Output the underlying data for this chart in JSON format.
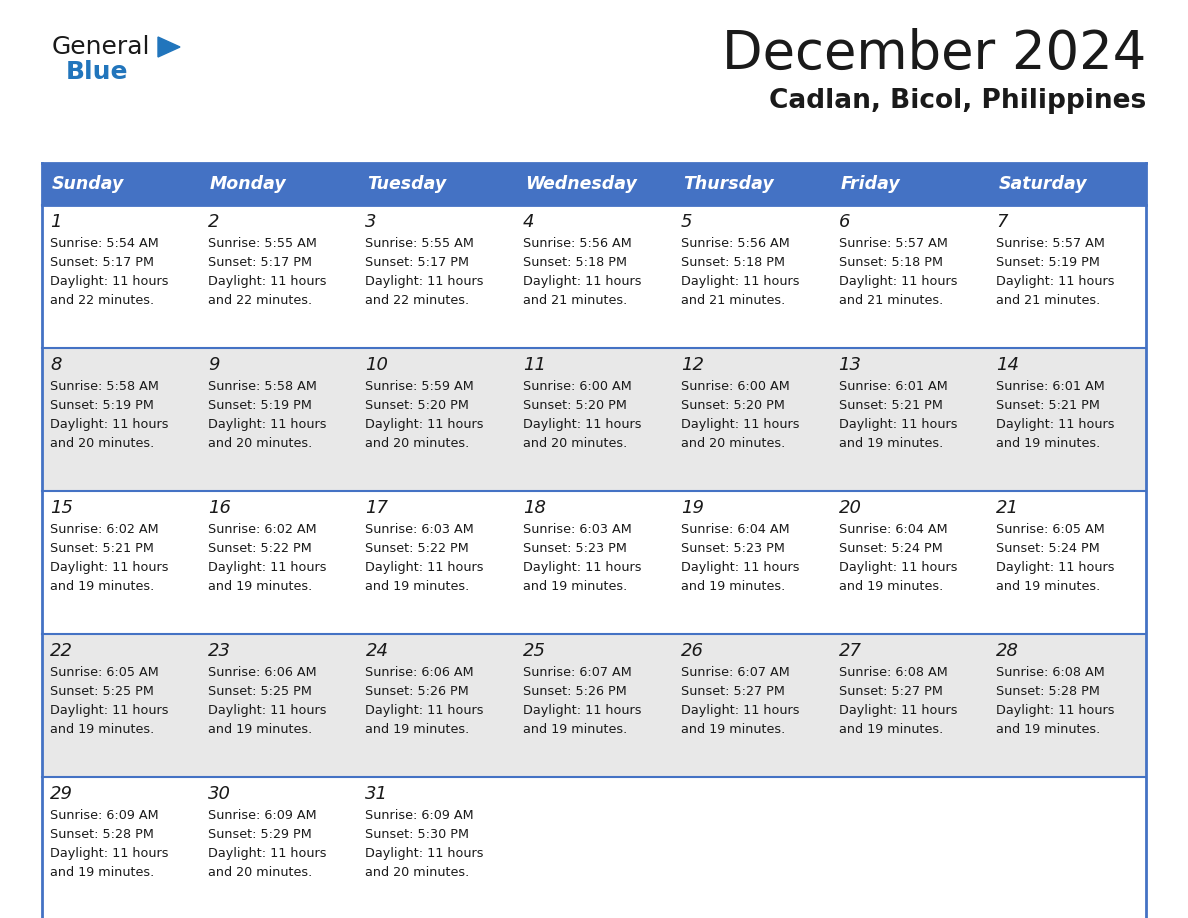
{
  "title": "December 2024",
  "subtitle": "Cadlan, Bicol, Philippines",
  "header_color": "#4472C4",
  "header_text_color": "#FFFFFF",
  "cell_bg_even": "#FFFFFF",
  "cell_bg_odd": "#E8E8E8",
  "border_color": "#4472C4",
  "day_names": [
    "Sunday",
    "Monday",
    "Tuesday",
    "Wednesday",
    "Thursday",
    "Friday",
    "Saturday"
  ],
  "weeks": [
    [
      {
        "day": 1,
        "sunrise": "5:54 AM",
        "sunset": "5:17 PM",
        "daylight_hours": 11,
        "daylight_minutes": 22
      },
      {
        "day": 2,
        "sunrise": "5:55 AM",
        "sunset": "5:17 PM",
        "daylight_hours": 11,
        "daylight_minutes": 22
      },
      {
        "day": 3,
        "sunrise": "5:55 AM",
        "sunset": "5:17 PM",
        "daylight_hours": 11,
        "daylight_minutes": 22
      },
      {
        "day": 4,
        "sunrise": "5:56 AM",
        "sunset": "5:18 PM",
        "daylight_hours": 11,
        "daylight_minutes": 21
      },
      {
        "day": 5,
        "sunrise": "5:56 AM",
        "sunset": "5:18 PM",
        "daylight_hours": 11,
        "daylight_minutes": 21
      },
      {
        "day": 6,
        "sunrise": "5:57 AM",
        "sunset": "5:18 PM",
        "daylight_hours": 11,
        "daylight_minutes": 21
      },
      {
        "day": 7,
        "sunrise": "5:57 AM",
        "sunset": "5:19 PM",
        "daylight_hours": 11,
        "daylight_minutes": 21
      }
    ],
    [
      {
        "day": 8,
        "sunrise": "5:58 AM",
        "sunset": "5:19 PM",
        "daylight_hours": 11,
        "daylight_minutes": 20
      },
      {
        "day": 9,
        "sunrise": "5:58 AM",
        "sunset": "5:19 PM",
        "daylight_hours": 11,
        "daylight_minutes": 20
      },
      {
        "day": 10,
        "sunrise": "5:59 AM",
        "sunset": "5:20 PM",
        "daylight_hours": 11,
        "daylight_minutes": 20
      },
      {
        "day": 11,
        "sunrise": "6:00 AM",
        "sunset": "5:20 PM",
        "daylight_hours": 11,
        "daylight_minutes": 20
      },
      {
        "day": 12,
        "sunrise": "6:00 AM",
        "sunset": "5:20 PM",
        "daylight_hours": 11,
        "daylight_minutes": 20
      },
      {
        "day": 13,
        "sunrise": "6:01 AM",
        "sunset": "5:21 PM",
        "daylight_hours": 11,
        "daylight_minutes": 19
      },
      {
        "day": 14,
        "sunrise": "6:01 AM",
        "sunset": "5:21 PM",
        "daylight_hours": 11,
        "daylight_minutes": 19
      }
    ],
    [
      {
        "day": 15,
        "sunrise": "6:02 AM",
        "sunset": "5:21 PM",
        "daylight_hours": 11,
        "daylight_minutes": 19
      },
      {
        "day": 16,
        "sunrise": "6:02 AM",
        "sunset": "5:22 PM",
        "daylight_hours": 11,
        "daylight_minutes": 19
      },
      {
        "day": 17,
        "sunrise": "6:03 AM",
        "sunset": "5:22 PM",
        "daylight_hours": 11,
        "daylight_minutes": 19
      },
      {
        "day": 18,
        "sunrise": "6:03 AM",
        "sunset": "5:23 PM",
        "daylight_hours": 11,
        "daylight_minutes": 19
      },
      {
        "day": 19,
        "sunrise": "6:04 AM",
        "sunset": "5:23 PM",
        "daylight_hours": 11,
        "daylight_minutes": 19
      },
      {
        "day": 20,
        "sunrise": "6:04 AM",
        "sunset": "5:24 PM",
        "daylight_hours": 11,
        "daylight_minutes": 19
      },
      {
        "day": 21,
        "sunrise": "6:05 AM",
        "sunset": "5:24 PM",
        "daylight_hours": 11,
        "daylight_minutes": 19
      }
    ],
    [
      {
        "day": 22,
        "sunrise": "6:05 AM",
        "sunset": "5:25 PM",
        "daylight_hours": 11,
        "daylight_minutes": 19
      },
      {
        "day": 23,
        "sunrise": "6:06 AM",
        "sunset": "5:25 PM",
        "daylight_hours": 11,
        "daylight_minutes": 19
      },
      {
        "day": 24,
        "sunrise": "6:06 AM",
        "sunset": "5:26 PM",
        "daylight_hours": 11,
        "daylight_minutes": 19
      },
      {
        "day": 25,
        "sunrise": "6:07 AM",
        "sunset": "5:26 PM",
        "daylight_hours": 11,
        "daylight_minutes": 19
      },
      {
        "day": 26,
        "sunrise": "6:07 AM",
        "sunset": "5:27 PM",
        "daylight_hours": 11,
        "daylight_minutes": 19
      },
      {
        "day": 27,
        "sunrise": "6:08 AM",
        "sunset": "5:27 PM",
        "daylight_hours": 11,
        "daylight_minutes": 19
      },
      {
        "day": 28,
        "sunrise": "6:08 AM",
        "sunset": "5:28 PM",
        "daylight_hours": 11,
        "daylight_minutes": 19
      }
    ],
    [
      {
        "day": 29,
        "sunrise": "6:09 AM",
        "sunset": "5:28 PM",
        "daylight_hours": 11,
        "daylight_minutes": 19
      },
      {
        "day": 30,
        "sunrise": "6:09 AM",
        "sunset": "5:29 PM",
        "daylight_hours": 11,
        "daylight_minutes": 20
      },
      {
        "day": 31,
        "sunrise": "6:09 AM",
        "sunset": "5:30 PM",
        "daylight_hours": 11,
        "daylight_minutes": 20
      },
      null,
      null,
      null,
      null
    ]
  ],
  "logo_general_color": "#1a1a1a",
  "logo_blue_color": "#2175bc",
  "logo_triangle_color": "#2175bc",
  "figwidth": 11.88,
  "figheight": 9.18,
  "dpi": 100
}
